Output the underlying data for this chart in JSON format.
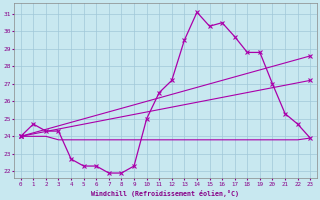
{
  "xlabel": "Windchill (Refroidissement éolien,°C)",
  "background_color": "#c8e8f0",
  "grid_color": "#a0c8d8",
  "line_color": "#aa00aa",
  "x_ticks": [
    0,
    1,
    2,
    3,
    4,
    5,
    6,
    7,
    8,
    9,
    10,
    11,
    12,
    13,
    14,
    15,
    16,
    17,
    18,
    19,
    20,
    21,
    22,
    23
  ],
  "y_ticks": [
    22,
    23,
    24,
    25,
    26,
    27,
    28,
    29,
    30,
    31
  ],
  "ylim": [
    21.6,
    31.6
  ],
  "xlim": [
    -0.5,
    23.5
  ],
  "line1_x": [
    0,
    1,
    2,
    3,
    4,
    5,
    6,
    7,
    8,
    9,
    10,
    11,
    12,
    13,
    14,
    15,
    16,
    17,
    18,
    19,
    20,
    21,
    22,
    23
  ],
  "line1_y": [
    24.0,
    24.7,
    24.3,
    24.3,
    22.7,
    22.3,
    22.3,
    21.9,
    21.9,
    22.3,
    25.0,
    26.5,
    27.2,
    29.5,
    31.1,
    30.3,
    30.5,
    29.7,
    28.8,
    28.8,
    27.0,
    25.3,
    24.7,
    23.9
  ],
  "line2_x": [
    0,
    23
  ],
  "line2_y": [
    24.0,
    28.6
  ],
  "line3_x": [
    0,
    23
  ],
  "line3_y": [
    24.0,
    27.2
  ],
  "line4_x": [
    0,
    1,
    2,
    3,
    4,
    5,
    6,
    7,
    8,
    9,
    10,
    11,
    12,
    13,
    14,
    15,
    16,
    17,
    18,
    19,
    20,
    21,
    22,
    23
  ],
  "line4_y": [
    24.0,
    24.0,
    24.0,
    23.8,
    23.8,
    23.8,
    23.8,
    23.8,
    23.8,
    23.8,
    23.8,
    23.8,
    23.8,
    23.8,
    23.8,
    23.8,
    23.8,
    23.8,
    23.8,
    23.8,
    23.8,
    23.8,
    23.8,
    23.9
  ]
}
